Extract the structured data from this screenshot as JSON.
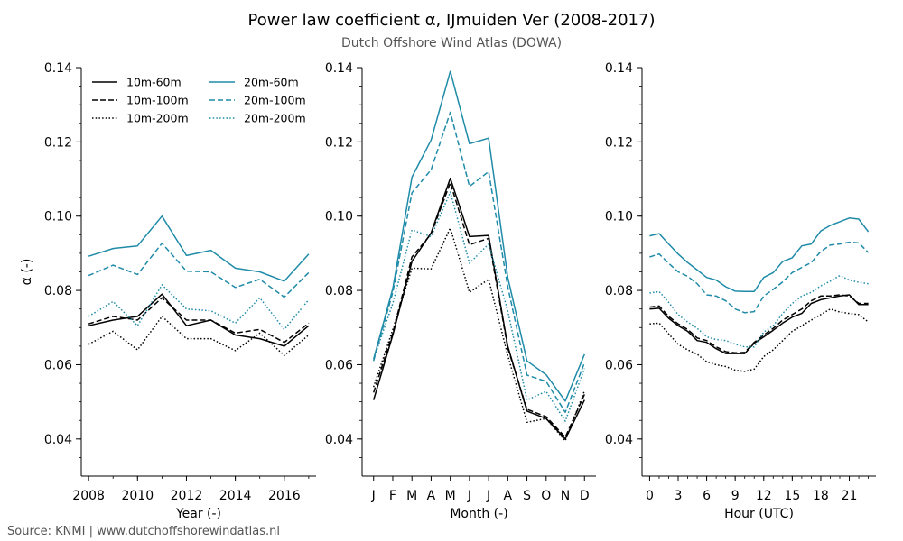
{
  "title": "Power law coefficient α, IJmuiden Ver (2008-2017)",
  "subtitle": "Dutch Offshore Wind Atlas (DOWA)",
  "source": "Source: KNMI | www.dutchoffshorewindatlas.nl",
  "colors": {
    "black": "#000000",
    "teal": "#1f8ba8"
  },
  "chart_data": [
    {
      "type": "line",
      "xlabel": "Year (-)",
      "ylabel": "α (-)",
      "ylim": [
        0.03,
        0.14
      ],
      "yticks": [
        "0.04",
        "0.06",
        "0.08",
        "0.10",
        "0.12",
        "0.14"
      ],
      "xlim": [
        2007.7,
        2017.3
      ],
      "xticks": [
        2008,
        2010,
        2012,
        2014,
        2016
      ],
      "xticklabels": [
        "2008",
        "2010",
        "2012",
        "2014",
        "2016"
      ],
      "minor_xticks": [
        2008,
        2009,
        2010,
        2011,
        2012,
        2013,
        2014,
        2015,
        2016,
        2017
      ],
      "x": [
        2008,
        2009,
        2010,
        2011,
        2012,
        2013,
        2014,
        2015,
        2016,
        2017
      ],
      "legend": {
        "position": "upper-left",
        "columns": 2
      },
      "series": [
        {
          "name": "10m-60m",
          "color": "black",
          "style": "solid",
          "values": [
            0.0705,
            0.072,
            0.073,
            0.079,
            0.0705,
            0.072,
            0.068,
            0.067,
            0.065,
            0.0705
          ]
        },
        {
          "name": "10m-100m",
          "color": "black",
          "style": "dashed",
          "values": [
            0.071,
            0.073,
            0.072,
            0.078,
            0.072,
            0.072,
            0.0685,
            0.0695,
            0.066,
            0.0712
          ]
        },
        {
          "name": "10m-200m",
          "color": "black",
          "style": "dotted",
          "values": [
            0.0655,
            0.069,
            0.064,
            0.073,
            0.067,
            0.067,
            0.0638,
            0.0685,
            0.0625,
            0.068
          ]
        },
        {
          "name": "20m-60m",
          "color": "teal",
          "style": "solid",
          "values": [
            0.0892,
            0.0913,
            0.092,
            0.1,
            0.0894,
            0.0908,
            0.086,
            0.085,
            0.0825,
            0.0898
          ]
        },
        {
          "name": "20m-100m",
          "color": "teal",
          "style": "dashed",
          "values": [
            0.084,
            0.0868,
            0.0843,
            0.0927,
            0.0852,
            0.085,
            0.0808,
            0.083,
            0.0782,
            0.0848
          ]
        },
        {
          "name": "20m-200m",
          "color": "teal",
          "style": "dotted",
          "values": [
            0.073,
            0.077,
            0.0705,
            0.0815,
            0.075,
            0.0745,
            0.0712,
            0.078,
            0.0695,
            0.0775
          ]
        }
      ]
    },
    {
      "type": "line",
      "xlabel": "Month (-)",
      "ylim": [
        0.03,
        0.14
      ],
      "yticks": [
        "0.04",
        "0.06",
        "0.08",
        "0.10",
        "0.12",
        "0.14"
      ],
      "xlim": [
        0.4,
        12.6
      ],
      "xticks": [
        1,
        2,
        3,
        4,
        5,
        6,
        7,
        8,
        9,
        10,
        11,
        12
      ],
      "xticklabels": [
        "J",
        "F",
        "M",
        "A",
        "M",
        "J",
        "J",
        "A",
        "S",
        "O",
        "N",
        "D"
      ],
      "x": [
        1,
        2,
        3,
        4,
        5,
        6,
        7,
        8,
        9,
        10,
        11,
        12
      ],
      "series": [
        {
          "name": "10m-60m",
          "color": "black",
          "style": "solid",
          "values": [
            0.0505,
            0.068,
            0.0878,
            0.0955,
            0.1102,
            0.0945,
            0.0948,
            0.065,
            0.0475,
            0.0455,
            0.04,
            0.0505
          ]
        },
        {
          "name": "10m-100m",
          "color": "black",
          "style": "dashed",
          "values": [
            0.0525,
            0.0685,
            0.089,
            0.0952,
            0.109,
            0.0923,
            0.094,
            0.0645,
            0.048,
            0.046,
            0.0405,
            0.052
          ]
        },
        {
          "name": "10m-200m",
          "color": "black",
          "style": "dotted",
          "values": [
            0.054,
            0.0695,
            0.086,
            0.0858,
            0.0968,
            0.0795,
            0.083,
            0.0625,
            0.0445,
            0.0455,
            0.0395,
            0.053
          ]
        },
        {
          "name": "20m-60m",
          "color": "teal",
          "style": "solid",
          "values": [
            0.0615,
            0.0805,
            0.1105,
            0.1205,
            0.139,
            0.1195,
            0.121,
            0.0835,
            0.061,
            0.0573,
            0.0502,
            0.0628
          ]
        },
        {
          "name": "20m-100m",
          "color": "teal",
          "style": "dashed",
          "values": [
            0.061,
            0.0795,
            0.1063,
            0.1125,
            0.128,
            0.108,
            0.112,
            0.081,
            0.0572,
            0.0555,
            0.0472,
            0.0605
          ]
        },
        {
          "name": "20m-200m",
          "color": "teal",
          "style": "dotted",
          "values": [
            0.0615,
            0.0765,
            0.0963,
            0.0945,
            0.1065,
            0.0873,
            0.0925,
            0.0745,
            0.0505,
            0.0528,
            0.0448,
            0.059
          ]
        }
      ]
    },
    {
      "type": "line",
      "xlabel": "Hour (UTC)",
      "ylim": [
        0.03,
        0.14
      ],
      "yticks": [
        "0.04",
        "0.06",
        "0.08",
        "0.10",
        "0.12",
        "0.14"
      ],
      "xlim": [
        -0.8,
        23.8
      ],
      "xticks": [
        0,
        3,
        6,
        9,
        12,
        15,
        18,
        21
      ],
      "xticklabels": [
        "0",
        "3",
        "6",
        "9",
        "12",
        "15",
        "18",
        "21"
      ],
      "minor_xticks": [
        0,
        1,
        2,
        3,
        4,
        5,
        6,
        7,
        8,
        9,
        10,
        11,
        12,
        13,
        14,
        15,
        16,
        17,
        18,
        19,
        20,
        21,
        22,
        23
      ],
      "x": [
        0,
        1,
        2,
        3,
        4,
        5,
        6,
        7,
        8,
        9,
        10,
        11,
        12,
        13,
        14,
        15,
        16,
        17,
        18,
        19,
        20,
        21,
        22,
        23
      ],
      "series": [
        {
          "name": "10m-60m",
          "color": "black",
          "style": "solid",
          "values": [
            0.075,
            0.0752,
            0.0725,
            0.0705,
            0.069,
            0.0665,
            0.066,
            0.0643,
            0.063,
            0.063,
            0.063,
            0.0658,
            0.0675,
            0.0693,
            0.0712,
            0.0728,
            0.0738,
            0.0765,
            0.0775,
            0.078,
            0.0785,
            0.0788,
            0.0762,
            0.0762
          ]
        },
        {
          "name": "10m-100m",
          "color": "black",
          "style": "dashed",
          "values": [
            0.0755,
            0.0758,
            0.073,
            0.071,
            0.0695,
            0.0672,
            0.0665,
            0.0648,
            0.0635,
            0.0632,
            0.0633,
            0.066,
            0.068,
            0.0698,
            0.072,
            0.0735,
            0.075,
            0.0772,
            0.0785,
            0.0785,
            0.0788,
            0.0785,
            0.0765,
            0.0765
          ]
        },
        {
          "name": "10m-200m",
          "color": "black",
          "style": "dotted",
          "values": [
            0.071,
            0.0712,
            0.0683,
            0.0655,
            0.064,
            0.0628,
            0.0608,
            0.06,
            0.0595,
            0.0585,
            0.0582,
            0.0588,
            0.0622,
            0.064,
            0.0665,
            0.069,
            0.0705,
            0.072,
            0.0735,
            0.075,
            0.0742,
            0.0738,
            0.0735,
            0.0715
          ]
        },
        {
          "name": "20m-60m",
          "color": "teal",
          "style": "solid",
          "values": [
            0.0947,
            0.0953,
            0.0925,
            0.0898,
            0.0875,
            0.0855,
            0.0835,
            0.0828,
            0.081,
            0.0798,
            0.0797,
            0.0797,
            0.0835,
            0.0848,
            0.0878,
            0.0888,
            0.092,
            0.0925,
            0.096,
            0.0975,
            0.0985,
            0.0995,
            0.0992,
            0.0958
          ]
        },
        {
          "name": "20m-100m",
          "color": "teal",
          "style": "dashed",
          "values": [
            0.089,
            0.0898,
            0.0873,
            0.085,
            0.0838,
            0.0818,
            0.0788,
            0.0785,
            0.0772,
            0.075,
            0.074,
            0.0743,
            0.0785,
            0.0803,
            0.0823,
            0.0848,
            0.0862,
            0.0875,
            0.0905,
            0.0922,
            0.0925,
            0.093,
            0.0928,
            0.0902
          ]
        },
        {
          "name": "20m-200m",
          "color": "teal",
          "style": "dotted",
          "values": [
            0.0793,
            0.0797,
            0.0768,
            0.0735,
            0.0715,
            0.0698,
            0.0675,
            0.0668,
            0.0665,
            0.0655,
            0.0648,
            0.0648,
            0.0688,
            0.0705,
            0.0738,
            0.0765,
            0.0785,
            0.0795,
            0.0812,
            0.0825,
            0.084,
            0.0828,
            0.0822,
            0.0818
          ]
        }
      ]
    }
  ]
}
